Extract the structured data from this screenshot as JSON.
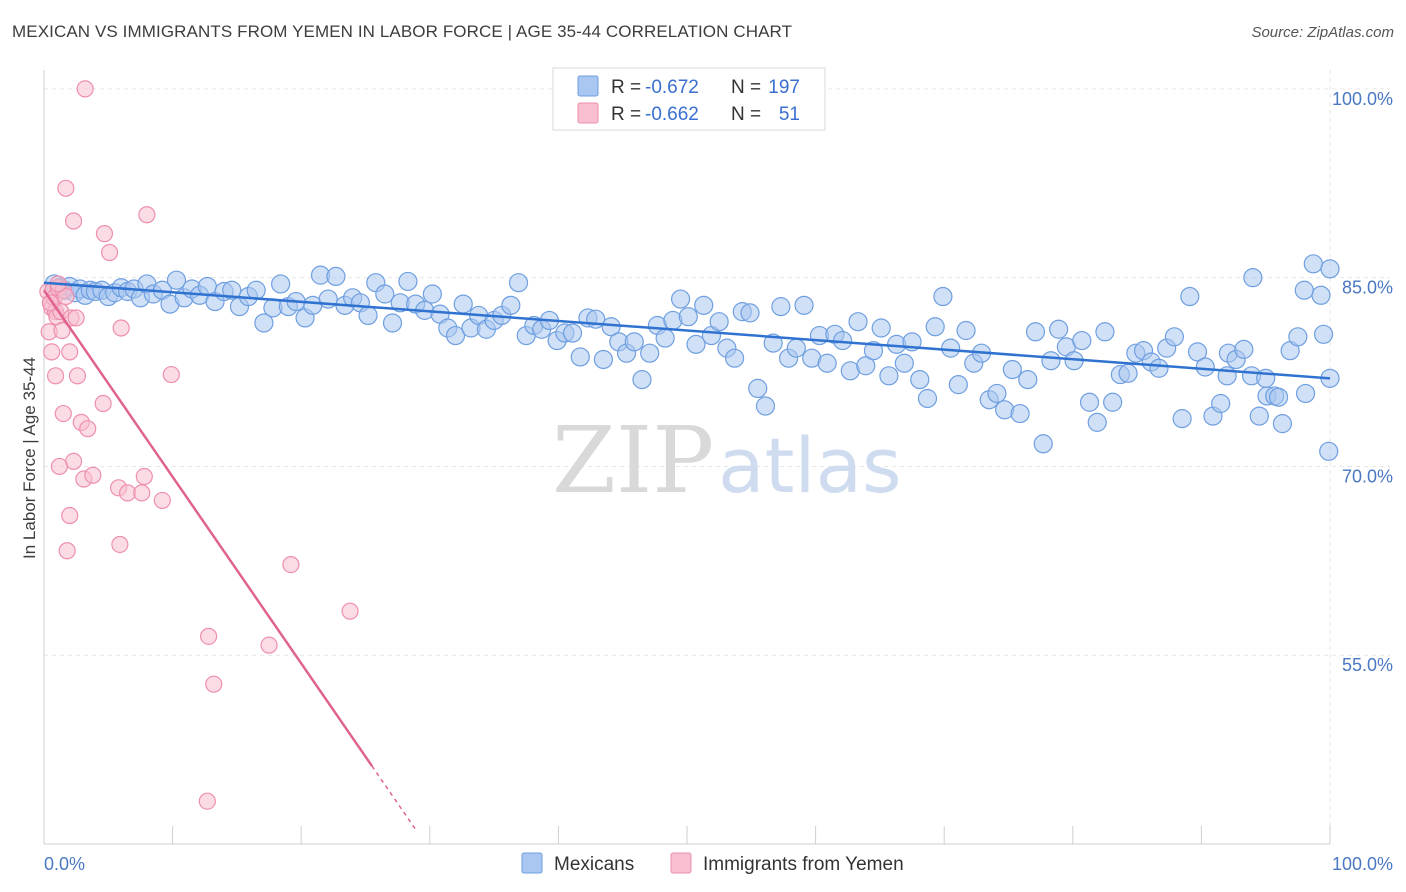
{
  "header": {
    "title": "MEXICAN VS IMMIGRANTS FROM YEMEN IN LABOR FORCE | AGE 35-44 CORRELATION CHART",
    "source": "Source: ZipAtlas.com"
  },
  "colors": {
    "mexicans_fill": "#a9c7f0",
    "mexicans_stroke": "#6f9fe0",
    "mexicans_line": "#2f72d0",
    "yemen_fill": "#f7bfd0",
    "yemen_stroke": "#ee8fad",
    "yemen_line": "#e0638f",
    "tick_text": "#4a78c2",
    "grid": "#e6e6e6"
  },
  "legend": {
    "rows": [
      {
        "r_label": "R =",
        "r_value": "-0.672",
        "n_label": "N =",
        "n_value": "197"
      },
      {
        "r_label": "R =",
        "r_value": "-0.662",
        "n_label": "N =",
        "n_value": "51"
      }
    ]
  },
  "watermark": {
    "part1": "ZIP",
    "part2": "atlas"
  },
  "bottom_legend": [
    "Mexicans",
    "Immigrants from Yemen"
  ],
  "chart_data": {
    "type": "scatter",
    "title": "MEXICAN VS IMMIGRANTS FROM YEMEN IN LABOR FORCE | AGE 35-44 CORRELATION CHART",
    "xlabel": "",
    "ylabel": "In Labor Force | Age 35-44",
    "xlim": [
      0,
      100
    ],
    "ylim": [
      40,
      101.5
    ],
    "x_tick_labels": [
      "0.0%",
      "100.0%"
    ],
    "y_ticks": [
      55,
      70,
      85,
      100
    ],
    "y_tick_labels": [
      "55.0%",
      "70.0%",
      "85.0%",
      "100.0%"
    ],
    "grid": true,
    "legend_position": "top-center",
    "series": [
      {
        "name": "Mexicans",
        "R": -0.672,
        "N": 197,
        "trend": {
          "x": [
            0,
            100
          ],
          "y": [
            84.6,
            77.0
          ]
        },
        "points": [
          [
            0.8,
            84.5
          ],
          [
            1.2,
            84.2
          ],
          [
            1.6,
            84.0
          ],
          [
            2.0,
            84.3
          ],
          [
            2.4,
            83.8
          ],
          [
            2.8,
            84.1
          ],
          [
            3.2,
            83.6
          ],
          [
            3.6,
            84.0
          ],
          [
            4.0,
            83.9
          ],
          [
            4.5,
            84.0
          ],
          [
            5.0,
            83.5
          ],
          [
            5.5,
            83.8
          ],
          [
            6.0,
            84.2
          ],
          [
            6.5,
            83.9
          ],
          [
            7.0,
            84.1
          ],
          [
            7.5,
            83.4
          ],
          [
            8.0,
            84.5
          ],
          [
            8.5,
            83.7
          ],
          [
            9.2,
            84.0
          ],
          [
            9.8,
            82.9
          ],
          [
            10.3,
            84.8
          ],
          [
            10.9,
            83.4
          ],
          [
            11.5,
            84.1
          ],
          [
            12.1,
            83.6
          ],
          [
            12.7,
            84.3
          ],
          [
            13.3,
            83.1
          ],
          [
            14.0,
            83.9
          ],
          [
            14.6,
            84.0
          ],
          [
            15.2,
            82.7
          ],
          [
            15.9,
            83.5
          ],
          [
            16.5,
            84.0
          ],
          [
            17.1,
            81.4
          ],
          [
            17.8,
            82.6
          ],
          [
            18.4,
            84.5
          ],
          [
            19.0,
            82.7
          ],
          [
            19.6,
            83.1
          ],
          [
            20.3,
            81.8
          ],
          [
            20.9,
            82.8
          ],
          [
            21.5,
            85.2
          ],
          [
            22.1,
            83.3
          ],
          [
            22.7,
            85.1
          ],
          [
            23.4,
            82.8
          ],
          [
            24.0,
            83.4
          ],
          [
            24.6,
            83.0
          ],
          [
            25.2,
            82.0
          ],
          [
            25.8,
            84.6
          ],
          [
            26.5,
            83.7
          ],
          [
            27.1,
            81.4
          ],
          [
            27.7,
            83.0
          ],
          [
            28.3,
            84.7
          ],
          [
            28.9,
            82.9
          ],
          [
            29.6,
            82.4
          ],
          [
            30.2,
            83.7
          ],
          [
            30.8,
            82.1
          ],
          [
            31.4,
            81.0
          ],
          [
            32.0,
            80.4
          ],
          [
            32.6,
            82.9
          ],
          [
            33.2,
            81.0
          ],
          [
            33.8,
            82.0
          ],
          [
            34.4,
            80.9
          ],
          [
            35.0,
            81.6
          ],
          [
            35.6,
            82.0
          ],
          [
            36.3,
            82.8
          ],
          [
            36.9,
            84.6
          ],
          [
            37.5,
            80.4
          ],
          [
            38.1,
            81.2
          ],
          [
            38.7,
            80.9
          ],
          [
            39.3,
            81.6
          ],
          [
            39.9,
            80.0
          ],
          [
            40.5,
            80.6
          ],
          [
            41.1,
            80.6
          ],
          [
            41.7,
            78.7
          ],
          [
            42.3,
            81.8
          ],
          [
            42.9,
            81.7
          ],
          [
            43.5,
            78.5
          ],
          [
            44.1,
            81.1
          ],
          [
            44.7,
            79.9
          ],
          [
            45.3,
            79.0
          ],
          [
            45.9,
            79.9
          ],
          [
            46.5,
            76.9
          ],
          [
            47.1,
            79.0
          ],
          [
            47.7,
            81.2
          ],
          [
            48.3,
            80.2
          ],
          [
            48.9,
            81.6
          ],
          [
            49.5,
            83.3
          ],
          [
            50.1,
            81.9
          ],
          [
            50.7,
            79.7
          ],
          [
            51.3,
            82.8
          ],
          [
            51.9,
            80.4
          ],
          [
            52.5,
            81.5
          ],
          [
            53.1,
            79.4
          ],
          [
            53.7,
            78.6
          ],
          [
            54.3,
            82.3
          ],
          [
            54.9,
            82.2
          ],
          [
            55.5,
            76.2
          ],
          [
            56.1,
            74.8
          ],
          [
            56.7,
            79.8
          ],
          [
            57.3,
            82.7
          ],
          [
            57.9,
            78.6
          ],
          [
            58.5,
            79.4
          ],
          [
            59.1,
            82.8
          ],
          [
            59.7,
            78.6
          ],
          [
            60.3,
            80.4
          ],
          [
            60.9,
            78.2
          ],
          [
            61.5,
            80.5
          ],
          [
            62.1,
            80.0
          ],
          [
            62.7,
            77.6
          ],
          [
            63.3,
            81.5
          ],
          [
            63.9,
            78.0
          ],
          [
            64.5,
            79.2
          ],
          [
            65.1,
            81.0
          ],
          [
            65.7,
            77.2
          ],
          [
            66.3,
            79.7
          ],
          [
            66.9,
            78.2
          ],
          [
            67.5,
            79.9
          ],
          [
            68.1,
            76.9
          ],
          [
            68.7,
            75.4
          ],
          [
            69.3,
            81.1
          ],
          [
            69.9,
            83.5
          ],
          [
            70.5,
            79.4
          ],
          [
            71.1,
            76.5
          ],
          [
            71.7,
            80.8
          ],
          [
            72.3,
            78.2
          ],
          [
            72.9,
            79.0
          ],
          [
            73.5,
            75.3
          ],
          [
            74.1,
            75.8
          ],
          [
            74.7,
            74.5
          ],
          [
            75.3,
            77.7
          ],
          [
            75.9,
            74.2
          ],
          [
            76.5,
            76.9
          ],
          [
            77.1,
            80.7
          ],
          [
            77.7,
            71.8
          ],
          [
            78.3,
            78.4
          ],
          [
            78.9,
            80.9
          ],
          [
            79.5,
            79.5
          ],
          [
            80.1,
            78.4
          ],
          [
            80.7,
            80.0
          ],
          [
            81.3,
            75.1
          ],
          [
            81.9,
            73.5
          ],
          [
            82.5,
            80.7
          ],
          [
            83.1,
            75.1
          ],
          [
            83.7,
            77.3
          ],
          [
            84.3,
            77.4
          ],
          [
            84.9,
            79.0
          ],
          [
            85.5,
            79.2
          ],
          [
            86.1,
            78.3
          ],
          [
            86.7,
            77.8
          ],
          [
            87.3,
            79.4
          ],
          [
            87.9,
            80.3
          ],
          [
            88.5,
            73.8
          ],
          [
            89.1,
            83.5
          ],
          [
            89.7,
            79.1
          ],
          [
            90.3,
            77.9
          ],
          [
            90.9,
            74.0
          ],
          [
            91.5,
            75.0
          ],
          [
            92.1,
            79.0
          ],
          [
            92.7,
            78.5
          ],
          [
            93.3,
            79.3
          ],
          [
            93.9,
            77.2
          ],
          [
            94.5,
            74.0
          ],
          [
            95.1,
            75.6
          ],
          [
            95.7,
            75.6
          ],
          [
            96.3,
            73.4
          ],
          [
            96.9,
            79.2
          ],
          [
            97.5,
            80.3
          ],
          [
            98.1,
            75.8
          ],
          [
            98.7,
            86.1
          ],
          [
            99.3,
            83.6
          ],
          [
            99.9,
            71.2
          ],
          [
            98.0,
            84.0
          ],
          [
            96.0,
            75.5
          ],
          [
            94.0,
            85.0
          ],
          [
            92.0,
            77.2
          ],
          [
            100.0,
            85.7
          ],
          [
            99.5,
            80.5
          ],
          [
            100.0,
            77.0
          ],
          [
            95.0,
            77.0
          ]
        ]
      },
      {
        "name": "Immigrants from Yemen",
        "R": -0.662,
        "N": 51,
        "trend": {
          "x": [
            0,
            25.5
          ],
          "y": [
            84.0,
            46.2
          ]
        },
        "trend_dashed": {
          "x": [
            25.5,
            29
          ],
          "y": [
            46.2,
            41.0
          ]
        },
        "points": [
          [
            0.3,
            83.9
          ],
          [
            0.5,
            83.0
          ],
          [
            0.6,
            82.6
          ],
          [
            0.7,
            84.0
          ],
          [
            0.8,
            83.4
          ],
          [
            0.9,
            82.3
          ],
          [
            1.0,
            81.9
          ],
          [
            1.1,
            84.2
          ],
          [
            0.4,
            80.7
          ],
          [
            0.6,
            79.1
          ],
          [
            0.9,
            77.2
          ],
          [
            1.3,
            82.3
          ],
          [
            1.5,
            84.0
          ],
          [
            1.7,
            83.5
          ],
          [
            1.4,
            80.8
          ],
          [
            2.1,
            81.8
          ],
          [
            2.0,
            79.1
          ],
          [
            2.5,
            81.8
          ],
          [
            2.6,
            77.2
          ],
          [
            1.5,
            74.2
          ],
          [
            2.9,
            73.5
          ],
          [
            3.4,
            73.0
          ],
          [
            2.3,
            70.4
          ],
          [
            3.1,
            69.0
          ],
          [
            3.8,
            69.3
          ],
          [
            1.2,
            70.0
          ],
          [
            2.0,
            66.1
          ],
          [
            1.8,
            63.3
          ],
          [
            5.8,
            68.3
          ],
          [
            6.5,
            67.9
          ],
          [
            7.6,
            67.9
          ],
          [
            7.8,
            69.2
          ],
          [
            9.2,
            67.3
          ],
          [
            5.9,
            63.8
          ],
          [
            1.7,
            92.1
          ],
          [
            2.3,
            89.5
          ],
          [
            4.7,
            88.5
          ],
          [
            5.1,
            87.0
          ],
          [
            8.0,
            90.0
          ],
          [
            3.2,
            100.0
          ],
          [
            6.0,
            81.0
          ],
          [
            9.9,
            77.3
          ],
          [
            4.6,
            75.0
          ],
          [
            19.2,
            62.2
          ],
          [
            23.8,
            58.5
          ],
          [
            12.8,
            56.5
          ],
          [
            17.5,
            55.8
          ],
          [
            13.2,
            52.7
          ],
          [
            12.7,
            43.4
          ],
          [
            1.1,
            84.5
          ],
          [
            0.5,
            83.0
          ]
        ]
      }
    ]
  }
}
